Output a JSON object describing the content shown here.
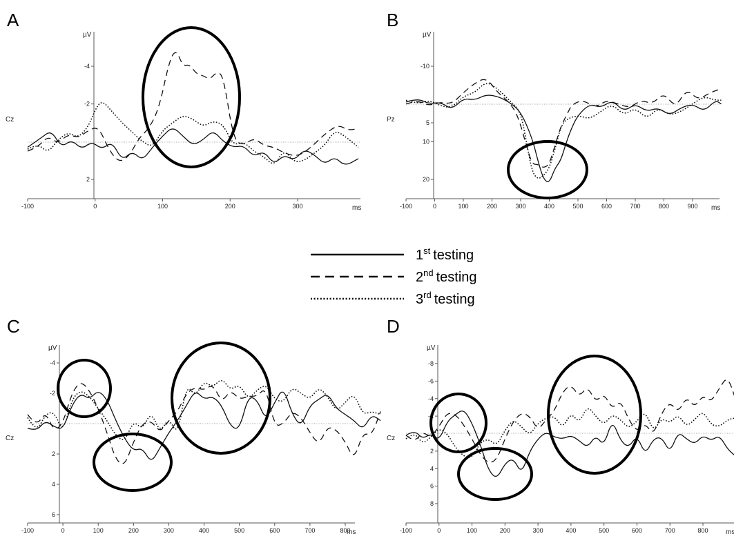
{
  "chart_data": [
    {
      "panel": "A",
      "type": "line",
      "ylabel": "µV",
      "xlabel": "ms",
      "channel": "Cz",
      "xlim": [
        -100,
        390
      ],
      "ylim": [
        -5.6,
        2.9
      ],
      "y_inverted": true,
      "xticks": [
        -100,
        0,
        100,
        200,
        300
      ],
      "yticks": [
        -4,
        -2,
        2
      ],
      "series": [
        {
          "style": "solid",
          "x": [
            -100,
            -80,
            -65,
            -50,
            -35,
            -20,
            -5,
            10,
            25,
            40,
            55,
            70,
            85,
            100,
            115,
            130,
            145,
            160,
            175,
            190,
            205,
            220,
            235,
            250,
            265,
            280,
            295,
            310,
            325,
            340,
            355,
            370,
            390
          ],
          "y": [
            0.3,
            -0.2,
            -0.6,
            0.3,
            -0.1,
            0.4,
            0.0,
            0.4,
            0.0,
            1.0,
            0.5,
            1.0,
            0.3,
            -0.3,
            -0.8,
            -0.3,
            0.2,
            -0.1,
            -0.6,
            0.0,
            0.3,
            0.2,
            0.8,
            0.5,
            1.2,
            0.7,
            1.0,
            0.4,
            0.7,
            1.2,
            0.8,
            1.3,
            0.9
          ]
        },
        {
          "style": "dashed",
          "x": [
            -100,
            -85,
            -70,
            -55,
            -40,
            -25,
            -10,
            5,
            20,
            35,
            50,
            65,
            80,
            95,
            110,
            120,
            130,
            140,
            150,
            160,
            170,
            180,
            190,
            205,
            220,
            235,
            250,
            265,
            280,
            300,
            320,
            340,
            360,
            375,
            390
          ],
          "y": [
            0.5,
            0.3,
            -0.3,
            0.1,
            -0.4,
            -0.2,
            -0.6,
            -0.8,
            0.4,
            1.1,
            0.8,
            -0.2,
            -0.7,
            -1.8,
            -4.3,
            -4.9,
            -4.0,
            -4.1,
            -3.6,
            -3.5,
            -3.3,
            -3.7,
            -3.5,
            -0.1,
            0.2,
            -0.2,
            0.2,
            0.3,
            0.6,
            0.8,
            0.3,
            -0.4,
            -0.9,
            -0.6,
            -0.7
          ]
        },
        {
          "style": "dotted",
          "x": [
            -100,
            -85,
            -70,
            -55,
            -40,
            -25,
            -10,
            0,
            10,
            25,
            40,
            55,
            70,
            85,
            100,
            115,
            130,
            145,
            160,
            175,
            190,
            205,
            220,
            235,
            250,
            265,
            280,
            295,
            310,
            325,
            340,
            355,
            370,
            390
          ],
          "y": [
            0.4,
            0.1,
            0.6,
            -0.1,
            -0.5,
            -0.2,
            -0.8,
            -1.7,
            -2.2,
            -1.6,
            -1.0,
            -0.5,
            0.0,
            0.3,
            -0.6,
            -1.0,
            -1.4,
            -1.2,
            -0.8,
            -1.1,
            -0.9,
            0.2,
            0.0,
            0.5,
            0.8,
            1.3,
            0.4,
            1.1,
            1.0,
            0.6,
            0.2,
            -0.6,
            -0.3,
            0.3
          ]
        }
      ]
    },
    {
      "panel": "B",
      "type": "line",
      "ylabel": "µV",
      "xlabel": "ms",
      "channel": "Pz",
      "xlim": [
        -100,
        1000
      ],
      "ylim": [
        -15,
        25.5
      ],
      "y_inverted": false,
      "xticks": [
        -100,
        0,
        100,
        200,
        300,
        400,
        500,
        600,
        700,
        800,
        900
      ],
      "yticks": [
        -10,
        5,
        10,
        20
      ],
      "series": [
        {
          "style": "solid",
          "x": [
            -100,
            -60,
            -20,
            20,
            60,
            100,
            140,
            180,
            220,
            260,
            300,
            340,
            360,
            380,
            400,
            420,
            440,
            460,
            480,
            500,
            540,
            580,
            620,
            660,
            700,
            740,
            780,
            820,
            860,
            900,
            940,
            980,
            1000
          ],
          "y": [
            -0.5,
            -1.5,
            0,
            -0.5,
            1.5,
            -1.5,
            -1,
            -2.5,
            -2,
            -0.5,
            2,
            9,
            15,
            20,
            21,
            17,
            15,
            10,
            6,
            3,
            0,
            1,
            -1,
            2,
            0,
            2,
            1,
            3,
            1,
            0,
            2,
            -1,
            0
          ]
        },
        {
          "style": "dashed",
          "x": [
            -100,
            -60,
            -20,
            20,
            60,
            100,
            140,
            180,
            220,
            260,
            290,
            320,
            340,
            360,
            380,
            400,
            420,
            440,
            460,
            480,
            520,
            560,
            600,
            640,
            680,
            720,
            760,
            800,
            840,
            880,
            920,
            960,
            1000
          ],
          "y": [
            0,
            -1,
            0.5,
            -0.5,
            0,
            -3,
            -5.5,
            -7,
            -3,
            -0.5,
            3,
            11,
            16,
            16,
            17,
            16,
            11,
            6,
            3,
            0,
            -1,
            1,
            -1,
            0,
            1,
            -1,
            0,
            -3,
            1,
            -4,
            -1,
            -3,
            -4
          ]
        },
        {
          "style": "dotted",
          "x": [
            -100,
            -60,
            -20,
            20,
            60,
            100,
            140,
            180,
            220,
            260,
            300,
            320,
            340,
            360,
            380,
            400,
            420,
            440,
            460,
            500,
            540,
            580,
            620,
            660,
            700,
            740,
            780,
            820,
            860,
            900,
            940,
            980,
            1000
          ],
          "y": [
            -1,
            0,
            -1,
            0.5,
            1,
            -2,
            -3,
            -6,
            -4,
            -1,
            2,
            10,
            18,
            20,
            19,
            17,
            12,
            6,
            4,
            3,
            4,
            2,
            0,
            3,
            1,
            4,
            1,
            3,
            2,
            0,
            -2,
            -1,
            -1
          ]
        }
      ]
    },
    {
      "panel": "C",
      "type": "line",
      "ylabel": "µV",
      "xlabel": "ms",
      "channel": "Cz",
      "xlim": [
        -100,
        900
      ],
      "ylim": [
        -5.5,
        7
      ],
      "y_inverted": true,
      "xticks": [
        -100,
        0,
        100,
        200,
        300,
        400,
        500,
        600,
        700,
        800
      ],
      "yticks": [
        -4,
        -2,
        2,
        4,
        6
      ],
      "series": [
        {
          "style": "solid",
          "x": [
            -100,
            -75,
            -50,
            -25,
            0,
            25,
            50,
            75,
            100,
            125,
            150,
            175,
            200,
            225,
            250,
            275,
            300,
            325,
            350,
            375,
            400,
            425,
            450,
            475,
            500,
            525,
            550,
            575,
            600,
            625,
            650,
            675,
            700,
            725,
            750,
            775,
            800,
            825,
            850,
            875,
            900
          ],
          "y": [
            0.3,
            0.5,
            -0.2,
            0.2,
            0.4,
            -1.2,
            -2.0,
            -1.6,
            -2.2,
            -1.6,
            -0.2,
            1.0,
            1.8,
            1.6,
            2.6,
            1.6,
            0.6,
            -0.2,
            -1.2,
            -2.2,
            -1.6,
            -1.8,
            -1.2,
            0.2,
            0.4,
            -1.8,
            -1.6,
            -0.2,
            -1.4,
            -2.4,
            -0.6,
            0.2,
            -1.2,
            -1.6,
            -2.0,
            -1.0,
            -0.6,
            -0.2,
            0.4,
            -0.6,
            -0.2
          ]
        },
        {
          "style": "dashed",
          "x": [
            -100,
            -75,
            -50,
            -25,
            0,
            25,
            50,
            75,
            100,
            125,
            150,
            175,
            200,
            225,
            250,
            275,
            300,
            325,
            350,
            375,
            400,
            425,
            450,
            475,
            500,
            525,
            550,
            575,
            600,
            625,
            650,
            675,
            700,
            725,
            750,
            775,
            800,
            825,
            850,
            875,
            900
          ],
          "y": [
            -0.6,
            0.2,
            -0.8,
            0.5,
            0.0,
            -2.0,
            -2.8,
            -2.2,
            -1.0,
            0.6,
            2.4,
            2.8,
            1.2,
            0.0,
            -0.2,
            0.6,
            -0.2,
            -0.8,
            -2.0,
            -2.4,
            -2.2,
            -2.6,
            -1.4,
            -2.2,
            -1.6,
            -1.8,
            -1.8,
            -2.4,
            0.2,
            0.0,
            -0.8,
            -0.4,
            0.6,
            1.4,
            0.2,
            0.4,
            1.2,
            2.4,
            0.6,
            0.8,
            -0.8
          ]
        },
        {
          "style": "dotted",
          "x": [
            -100,
            -75,
            -50,
            -25,
            0,
            25,
            50,
            75,
            100,
            125,
            150,
            175,
            200,
            225,
            250,
            275,
            300,
            325,
            350,
            375,
            400,
            425,
            450,
            475,
            500,
            525,
            550,
            575,
            600,
            625,
            650,
            675,
            700,
            725,
            750,
            775,
            800,
            825,
            850,
            875,
            900
          ],
          "y": [
            -0.4,
            0.6,
            -0.6,
            -0.8,
            0.6,
            -1.6,
            -2.2,
            -1.8,
            -1.0,
            -0.2,
            0.8,
            1.2,
            -0.2,
            0.4,
            -0.8,
            0.6,
            -0.4,
            0.8,
            -2.6,
            -1.8,
            -2.8,
            -2.4,
            -3.0,
            -2.2,
            -2.6,
            -1.6,
            -2.2,
            -2.6,
            -1.6,
            -1.4,
            -2.4,
            -2.0,
            -1.6,
            -2.4,
            -1.8,
            -0.8,
            -1.4,
            -2.0,
            -0.6,
            -0.8,
            -0.6
          ]
        }
      ]
    },
    {
      "panel": "D",
      "type": "line",
      "ylabel": "µV",
      "xlabel": "ms",
      "channel": "Cz",
      "xlim": [
        -100,
        900
      ],
      "ylim": [
        -9.3,
        10.5
      ],
      "y_inverted": true,
      "xticks": [
        -100,
        0,
        100,
        200,
        300,
        400,
        500,
        600,
        700,
        800
      ],
      "yticks": [
        -8,
        -6,
        -4,
        -2,
        2,
        4,
        6,
        8
      ],
      "series": [
        {
          "style": "solid",
          "x": [
            -100,
            -75,
            -50,
            -25,
            0,
            25,
            50,
            75,
            100,
            125,
            150,
            175,
            200,
            225,
            250,
            275,
            300,
            325,
            350,
            375,
            400,
            425,
            450,
            475,
            500,
            525,
            550,
            575,
            600,
            625,
            650,
            675,
            700,
            725,
            750,
            775,
            800,
            825,
            850,
            875,
            900
          ],
          "y": [
            0.2,
            -0.4,
            0.6,
            0.0,
            0.8,
            -1.4,
            -2.2,
            -2.8,
            -1.2,
            1.2,
            4.2,
            5.2,
            3.4,
            2.8,
            4.6,
            2.0,
            0.6,
            -0.2,
            0.4,
            0.6,
            0.2,
            0.8,
            1.6,
            0.2,
            1.4,
            -1.6,
            0.8,
            1.6,
            0.2,
            2.4,
            0.6,
            0.4,
            2.2,
            -0.2,
            0.6,
            1.2,
            0.2,
            0.8,
            0.2,
            1.8,
            2.6
          ]
        },
        {
          "style": "dashed",
          "x": [
            -100,
            -75,
            -50,
            -25,
            0,
            25,
            50,
            75,
            100,
            125,
            150,
            175,
            200,
            225,
            250,
            275,
            300,
            325,
            350,
            375,
            400,
            425,
            450,
            475,
            500,
            525,
            550,
            575,
            600,
            625,
            650,
            675,
            700,
            725,
            750,
            775,
            800,
            825,
            850,
            875,
            900
          ],
          "y": [
            0.2,
            1.0,
            -0.2,
            0.4,
            -0.8,
            -2.4,
            -2.2,
            -1.0,
            0.6,
            2.4,
            3.4,
            3.0,
            0.6,
            -1.4,
            -2.4,
            -2.0,
            -0.4,
            -1.6,
            -2.6,
            -4.8,
            -5.6,
            -4.2,
            -5.4,
            -3.6,
            -4.6,
            -2.8,
            -3.8,
            -1.6,
            -0.2,
            -1.2,
            0.2,
            -2.4,
            -3.6,
            -2.4,
            -4.2,
            -3.0,
            -4.4,
            -3.6,
            -5.2,
            -6.6,
            -3.8
          ]
        },
        {
          "style": "dotted",
          "x": [
            -100,
            -75,
            -50,
            -25,
            0,
            25,
            50,
            75,
            100,
            125,
            150,
            175,
            200,
            225,
            250,
            275,
            300,
            325,
            350,
            375,
            400,
            425,
            450,
            475,
            500,
            525,
            550,
            575,
            600,
            625,
            650,
            675,
            700,
            725,
            750,
            775,
            800,
            825,
            850,
            875,
            900
          ],
          "y": [
            0.6,
            -0.2,
            1.2,
            0.4,
            -0.6,
            0.0,
            1.6,
            2.6,
            2.8,
            1.0,
            0.6,
            1.4,
            -0.4,
            -1.6,
            -0.8,
            0.2,
            -1.2,
            -1.8,
            -2.0,
            -0.6,
            -2.4,
            -1.2,
            -3.2,
            -2.0,
            -1.0,
            -2.2,
            -1.6,
            -0.6,
            -1.4,
            -2.6,
            -0.2,
            -1.8,
            -1.2,
            -2.2,
            -0.8,
            -1.6,
            -2.6,
            -1.0,
            -0.8,
            -1.6,
            -1.8
          ]
        }
      ]
    }
  ],
  "panels": [
    {
      "letter": "A"
    },
    {
      "letter": "B"
    },
    {
      "letter": "C"
    },
    {
      "letter": "D"
    }
  ],
  "legend": {
    "items": [
      {
        "num": "1",
        "sup": "st",
        "text": "testing",
        "style": "solid"
      },
      {
        "num": "2",
        "sup": "nd",
        "text": "testing",
        "style": "dashed"
      },
      {
        "num": "3",
        "sup": "rd",
        "text": "testing",
        "style": "dotted"
      }
    ]
  }
}
